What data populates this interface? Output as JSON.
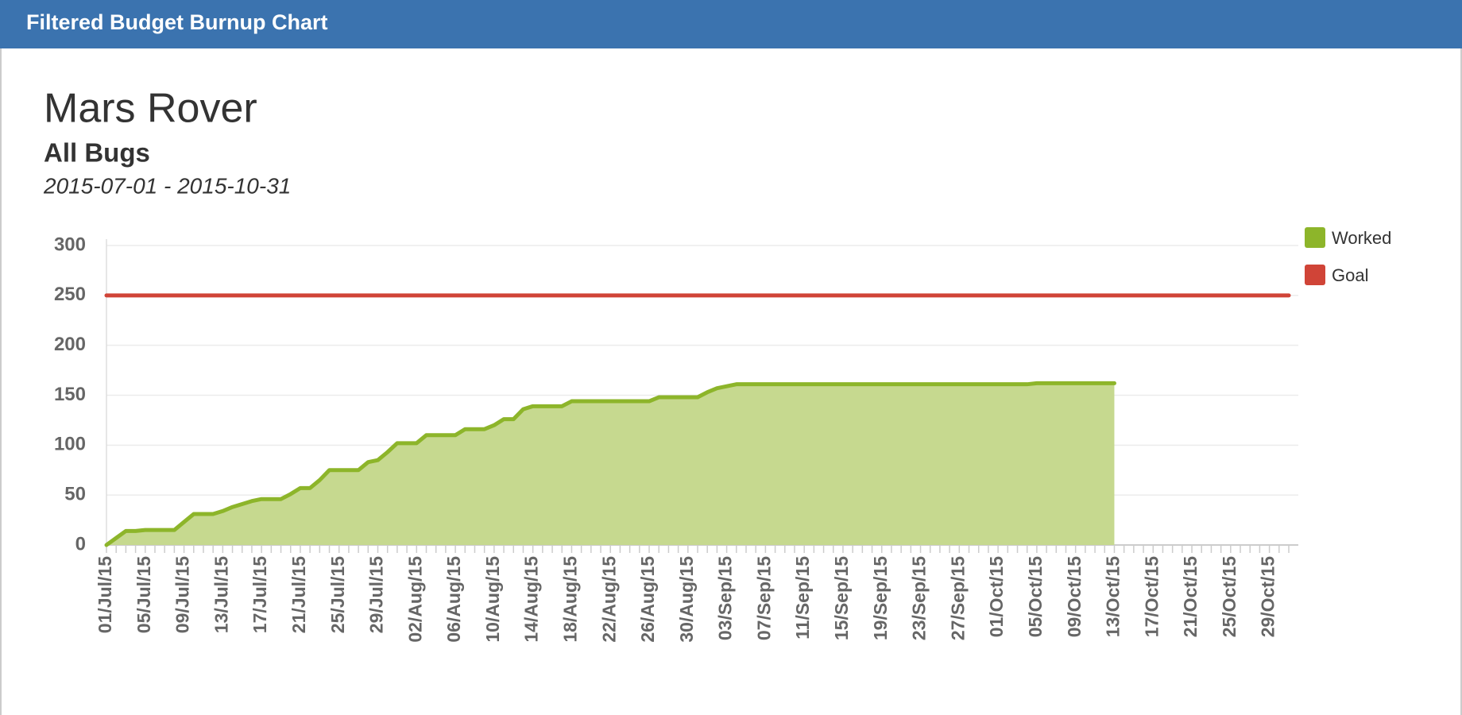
{
  "header": {
    "title": "Filtered Budget Burnup Chart"
  },
  "chart_data": {
    "type": "area",
    "title": "Mars Rover",
    "subtitle": "All Bugs",
    "date_range": "2015-07-01 - 2015-10-31",
    "categories": [
      "01/Jul/15",
      null,
      null,
      null,
      "05/Jul/15",
      null,
      null,
      null,
      "09/Jul/15",
      null,
      null,
      null,
      "13/Jul/15",
      null,
      null,
      null,
      "17/Jul/15",
      null,
      null,
      null,
      "21/Jul/15",
      null,
      null,
      null,
      "25/Jul/15",
      null,
      null,
      null,
      "29/Jul/15",
      null,
      null,
      null,
      "02/Aug/15",
      null,
      null,
      null,
      "06/Aug/15",
      null,
      null,
      null,
      "10/Aug/15",
      null,
      null,
      null,
      "14/Aug/15",
      null,
      null,
      null,
      "18/Aug/15",
      null,
      null,
      null,
      "22/Aug/15",
      null,
      null,
      null,
      "26/Aug/15",
      null,
      null,
      null,
      "30/Aug/15",
      null,
      null,
      null,
      "03/Sep/15",
      null,
      null,
      null,
      "07/Sep/15",
      null,
      null,
      null,
      "11/Sep/15",
      null,
      null,
      null,
      "15/Sep/15",
      null,
      null,
      null,
      "19/Sep/15",
      null,
      null,
      null,
      "23/Sep/15",
      null,
      null,
      null,
      "27/Sep/15",
      null,
      null,
      null,
      "01/Oct/15",
      null,
      null,
      null,
      "05/Oct/15",
      null,
      null,
      null,
      "09/Oct/15",
      null,
      null,
      null,
      "13/Oct/15",
      null,
      null,
      null,
      "17/Oct/15",
      null,
      null,
      null,
      "21/Oct/15",
      null,
      null,
      null,
      "25/Oct/15",
      null,
      null,
      null,
      "29/Oct/15",
      null,
      null
    ],
    "series": [
      {
        "name": "Worked",
        "color": "#8db52a",
        "fill": "#c6d98f",
        "values": [
          0,
          7,
          14,
          14,
          15,
          15,
          15,
          15,
          23,
          31,
          31,
          31,
          34,
          38,
          41,
          44,
          46,
          46,
          46,
          51,
          57,
          57,
          65,
          75,
          75,
          75,
          75,
          83,
          85,
          93,
          102,
          102,
          102,
          110,
          110,
          110,
          110,
          116,
          116,
          116,
          120,
          126,
          126,
          136,
          139,
          139,
          139,
          139,
          144,
          144,
          144,
          144,
          144,
          144,
          144,
          144,
          144,
          148,
          148,
          148,
          148,
          148,
          153,
          157,
          159,
          161,
          161,
          161,
          161,
          161,
          161,
          161,
          161,
          161,
          161,
          161,
          161,
          161,
          161,
          161,
          161,
          161,
          161,
          161,
          161,
          161,
          161,
          161,
          161,
          161,
          161,
          161,
          161,
          161,
          161,
          161,
          162,
          162,
          162,
          162,
          162,
          162,
          162,
          162,
          162,
          null,
          null,
          null,
          null,
          null,
          null,
          null,
          null,
          null,
          null,
          null,
          null,
          null,
          null,
          null,
          null,
          null,
          null
        ]
      },
      {
        "name": "Goal",
        "color": "#d04437",
        "values": [
          250,
          250,
          250,
          250,
          250,
          250,
          250,
          250,
          250,
          250,
          250,
          250,
          250,
          250,
          250,
          250,
          250,
          250,
          250,
          250,
          250,
          250,
          250,
          250,
          250,
          250,
          250,
          250,
          250,
          250,
          250,
          250,
          250,
          250,
          250,
          250,
          250,
          250,
          250,
          250,
          250,
          250,
          250,
          250,
          250,
          250,
          250,
          250,
          250,
          250,
          250,
          250,
          250,
          250,
          250,
          250,
          250,
          250,
          250,
          250,
          250,
          250,
          250,
          250,
          250,
          250,
          250,
          250,
          250,
          250,
          250,
          250,
          250,
          250,
          250,
          250,
          250,
          250,
          250,
          250,
          250,
          250,
          250,
          250,
          250,
          250,
          250,
          250,
          250,
          250,
          250,
          250,
          250,
          250,
          250,
          250,
          250,
          250,
          250,
          250,
          250,
          250,
          250,
          250,
          250,
          250,
          250,
          250,
          250,
          250,
          250,
          250,
          250,
          250,
          250,
          250,
          250,
          250,
          250,
          250,
          250,
          250,
          250
        ]
      }
    ],
    "ylim": [
      0,
      300
    ],
    "yticks": [
      0,
      50,
      100,
      150,
      200,
      250,
      300
    ],
    "grid": true,
    "legend": "top-right"
  }
}
